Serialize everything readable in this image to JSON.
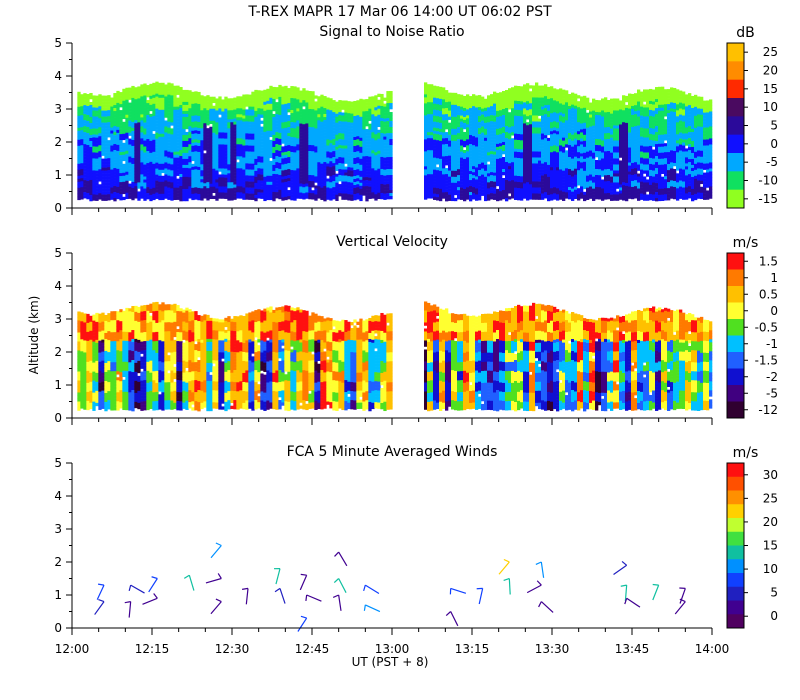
{
  "header": {
    "title": "T-REX   MAPR 17 Mar 06   14:00 UT   06:02   PST"
  },
  "x_axis": {
    "ticks": [
      "12:00",
      "12:15",
      "12:30",
      "12:45",
      "13:00",
      "13:15",
      "13:30",
      "13:45",
      "14:00"
    ],
    "label": "UT   (PST + 8)",
    "range_minutes": [
      0,
      120
    ]
  },
  "y_axis": {
    "label": "Altitude (km)",
    "ticks": [
      "0",
      "1",
      "2",
      "3",
      "4",
      "5"
    ],
    "range": [
      0,
      5
    ]
  },
  "chart_data": [
    {
      "type": "heatmap",
      "title": "Signal to Noise Ratio",
      "unit": "dB",
      "ylabel": "Altitude (km)",
      "ylim": [
        0,
        5
      ],
      "xlim_minutes": [
        0,
        120
      ],
      "data_extent_minutes": [
        [
          1,
          60
        ],
        [
          66,
          120
        ]
      ],
      "data_top_km_approx": 3.6,
      "data_bottom_km": 0.3,
      "colorbar": {
        "labels": [
          "25",
          "20",
          "15",
          "10",
          "5",
          "0",
          "-5",
          "-10",
          "-15"
        ],
        "colors": [
          "#ffc000",
          "#ff8c00",
          "#ff2a00",
          "#4a0a60",
          "#2b0a9a",
          "#1010ff",
          "#00a8ff",
          "#10e060",
          "#90ff20"
        ]
      },
      "features": [
        {
          "type": "column",
          "center_minutes": 12,
          "value_class": "low"
        },
        {
          "type": "column",
          "center_minutes": 25,
          "value_class": "low"
        },
        {
          "type": "column",
          "center_minutes": 30,
          "value_class": "high"
        },
        {
          "type": "column",
          "center_minutes": 43,
          "value_class": "low"
        },
        {
          "type": "column",
          "center_minutes": 85,
          "value_class": "low"
        },
        {
          "type": "column",
          "center_minutes": 103,
          "value_class": "high"
        }
      ]
    },
    {
      "type": "heatmap",
      "title": "Vertical Velocity",
      "unit": "m/s",
      "ylabel": "Altitude (km)",
      "ylim": [
        0,
        5
      ],
      "xlim_minutes": [
        0,
        120
      ],
      "data_extent_minutes": [
        [
          1,
          60
        ],
        [
          66,
          120
        ]
      ],
      "data_top_km_approx": 3.3,
      "data_bottom_km": 0.3,
      "colorbar": {
        "labels": [
          "1.5",
          "1",
          "0.5",
          "0",
          "-0.5",
          "-1",
          "-1.5",
          "-2",
          "-5",
          "-12"
        ],
        "colors": [
          "#ff1010",
          "#ff7a00",
          "#ffc000",
          "#ffff30",
          "#50e020",
          "#00c0ff",
          "#2060ff",
          "#1010d0",
          "#400080",
          "#300030"
        ]
      }
    },
    {
      "type": "scatter",
      "subtype": "wind_barbs",
      "title": "FCA 5 Minute Averaged Winds",
      "unit": "m/s",
      "ylabel": "Altitude (km)",
      "ylim": [
        0,
        5
      ],
      "xlim_minutes": [
        0,
        120
      ],
      "colorbar": {
        "labels": [
          "30",
          "25",
          "20",
          "15",
          "10",
          "5",
          "0"
        ],
        "colors": [
          "#ff1010",
          "#ff5000",
          "#ff9000",
          "#ffd000",
          "#c0ff30",
          "#40e040",
          "#10c0a0",
          "#0090ff",
          "#1040ff",
          "#2020c0",
          "#400090",
          "#500060"
        ]
      },
      "barbs": [
        {
          "t": 6,
          "alt": 1.3,
          "speed": 8
        },
        {
          "t": 6,
          "alt": 0.8,
          "speed": 6
        },
        {
          "t": 11,
          "alt": 1.3,
          "speed": 5
        },
        {
          "t": 11,
          "alt": 0.8,
          "speed": 4
        },
        {
          "t": 16,
          "alt": 1.5,
          "speed": 9
        },
        {
          "t": 16,
          "alt": 0.9,
          "speed": 4
        },
        {
          "t": 22,
          "alt": 1.6,
          "speed": 13
        },
        {
          "t": 28,
          "alt": 2.5,
          "speed": 12
        },
        {
          "t": 28,
          "alt": 1.5,
          "speed": 4
        },
        {
          "t": 28,
          "alt": 0.8,
          "speed": 3
        },
        {
          "t": 33,
          "alt": 1.2,
          "speed": 4
        },
        {
          "t": 39,
          "alt": 1.8,
          "speed": 14
        },
        {
          "t": 39,
          "alt": 1.2,
          "speed": 5
        },
        {
          "t": 44,
          "alt": 1.6,
          "speed": 4
        },
        {
          "t": 44,
          "alt": 1.0,
          "speed": 4
        },
        {
          "t": 44,
          "alt": 0.3,
          "speed": 8
        },
        {
          "t": 50,
          "alt": 2.3,
          "speed": 4
        },
        {
          "t": 50,
          "alt": 1.5,
          "speed": 13
        },
        {
          "t": 50,
          "alt": 1.0,
          "speed": 4
        },
        {
          "t": 55,
          "alt": 1.3,
          "speed": 9
        },
        {
          "t": 55,
          "alt": 0.7,
          "speed": 12
        },
        {
          "t": 71,
          "alt": 1.2,
          "speed": 9
        },
        {
          "t": 71,
          "alt": 0.5,
          "speed": 4
        },
        {
          "t": 77,
          "alt": 1.2,
          "speed": 9
        },
        {
          "t": 82,
          "alt": 2.0,
          "speed": 22
        },
        {
          "t": 82,
          "alt": 1.5,
          "speed": 13
        },
        {
          "t": 88,
          "alt": 2.0,
          "speed": 10
        },
        {
          "t": 88,
          "alt": 1.3,
          "speed": 4
        },
        {
          "t": 88,
          "alt": 0.8,
          "speed": 4
        },
        {
          "t": 104,
          "alt": 1.9,
          "speed": 5
        },
        {
          "t": 104,
          "alt": 1.3,
          "speed": 13
        },
        {
          "t": 104,
          "alt": 0.9,
          "speed": 4
        },
        {
          "t": 110,
          "alt": 1.3,
          "speed": 15
        },
        {
          "t": 115,
          "alt": 1.2,
          "speed": 4
        },
        {
          "t": 115,
          "alt": 0.8,
          "speed": 4
        }
      ]
    }
  ]
}
